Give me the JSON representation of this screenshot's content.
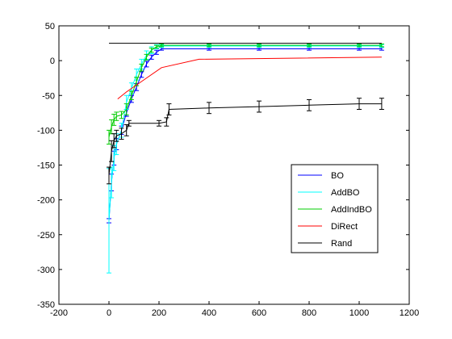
{
  "chart_data": {
    "type": "line",
    "title": "",
    "xlabel": "",
    "ylabel": "",
    "xlim": [
      -200,
      1200
    ],
    "ylim": [
      -350,
      50
    ],
    "xticks": [
      -200,
      0,
      200,
      400,
      600,
      800,
      1000,
      1200
    ],
    "yticks": [
      -350,
      -300,
      -250,
      -200,
      -150,
      -100,
      -50,
      0,
      50
    ],
    "xtick_labels": [
      "-200",
      "0",
      "200",
      "400",
      "600",
      "800",
      "1000",
      "1200"
    ],
    "ytick_labels": [
      "-350",
      "-300",
      "-250",
      "-200",
      "-150",
      "-100",
      "-50",
      "0",
      "50"
    ],
    "grid": false,
    "legend_position": "right",
    "series": [
      {
        "name": "BO",
        "color": "#0000ff",
        "x": [
          0,
          10,
          20,
          30,
          50,
          70,
          90,
          110,
          130,
          150,
          170,
          190,
          210,
          400,
          600,
          800,
          1000,
          1090
        ],
        "y": [
          -230,
          -175,
          -140,
          -120,
          -100,
          -75,
          -55,
          -38,
          -20,
          -5,
          5,
          12,
          17,
          17,
          17,
          17,
          17,
          17
        ],
        "err": [
          3,
          12,
          10,
          8,
          6,
          5,
          5,
          5,
          4,
          4,
          3,
          3,
          2,
          2,
          2,
          2,
          2,
          2
        ]
      },
      {
        "name": "AddBO",
        "color": "#00ffff",
        "x": [
          0,
          10,
          20,
          30,
          50,
          70,
          90,
          110,
          130,
          150,
          170,
          190,
          210,
          400,
          600,
          800,
          1000,
          1090
        ],
        "y": [
          -230,
          -175,
          -140,
          -120,
          -100,
          -60,
          -40,
          -20,
          -5,
          8,
          15,
          20,
          21,
          21,
          21,
          21,
          21,
          21
        ],
        "err": [
          75,
          22,
          18,
          15,
          10,
          10,
          8,
          8,
          7,
          6,
          5,
          3,
          2,
          2,
          2,
          2,
          2,
          2
        ]
      },
      {
        "name": "AddIndBO",
        "color": "#00cc00",
        "x": [
          0,
          10,
          20,
          30,
          50,
          70,
          90,
          110,
          130,
          150,
          170,
          190,
          210,
          400,
          600,
          800,
          1000,
          1090
        ],
        "y": [
          -110,
          -95,
          -85,
          -80,
          -78,
          -70,
          -50,
          -30,
          -10,
          5,
          15,
          20,
          22,
          22,
          22,
          22,
          22,
          22
        ],
        "err": [
          10,
          10,
          8,
          6,
          5,
          8,
          6,
          6,
          5,
          4,
          3,
          2,
          2,
          2,
          2,
          2,
          2,
          2
        ]
      },
      {
        "name": "DiRect",
        "color": "#ff0000",
        "x": [
          35,
          70,
          130,
          210,
          360,
          1090
        ],
        "y": [
          -55,
          -45,
          -30,
          -10,
          2,
          5
        ],
        "err": []
      },
      {
        "name": "Rand",
        "color": "#000000",
        "x": [
          0,
          10,
          20,
          30,
          50,
          70,
          80,
          200,
          230,
          240,
          400,
          600,
          800,
          1000,
          1090
        ],
        "y": [
          -165,
          -130,
          -115,
          -108,
          -105,
          -100,
          -90,
          -90,
          -88,
          -70,
          -68,
          -66,
          -64,
          -62,
          -62
        ],
        "err": [
          12,
          15,
          10,
          8,
          8,
          8,
          4,
          4,
          6,
          8,
          8,
          8,
          8,
          8,
          8
        ]
      },
      {
        "name": "",
        "color": "#000000",
        "x": [
          0,
          1090
        ],
        "y": [
          25,
          25
        ],
        "err": []
      }
    ]
  }
}
